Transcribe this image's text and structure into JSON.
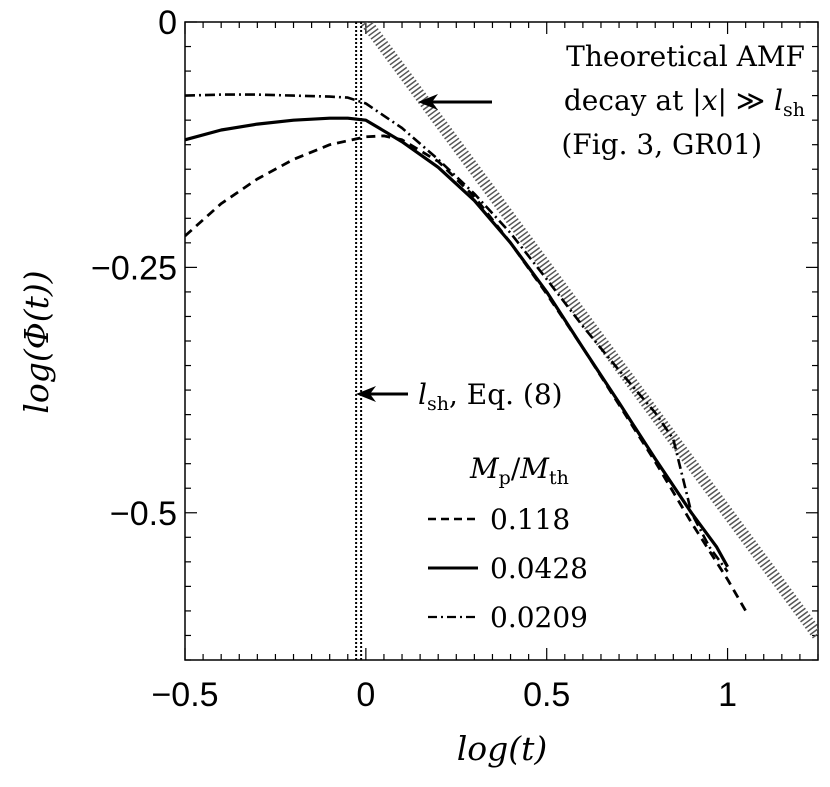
{
  "chart_data": {
    "type": "line",
    "xlabel": "log(t)",
    "ylabel": "log(Φ(t))",
    "xlim": [
      -0.5,
      1.25
    ],
    "ylim": [
      -0.65,
      0
    ],
    "x_ticks": [
      -0.5,
      0,
      0.5,
      1
    ],
    "x_tick_labels": [
      "−0.5",
      "0",
      "0.5",
      "1"
    ],
    "y_ticks": [
      0,
      -0.25,
      -0.5
    ],
    "y_tick_labels": [
      "0",
      "−0.25",
      "−0.5"
    ],
    "legend": {
      "title": "M_p/M_th",
      "title_main": "M",
      "title_sub1": "p",
      "title_slash": "/",
      "title_sub2": "th",
      "placement": "lower-center",
      "entries": [
        "0.118",
        "0.0428",
        "0.0209"
      ]
    },
    "series": [
      {
        "name": "0.118",
        "style": "dashed",
        "x": [
          -0.5,
          -0.4,
          -0.3,
          -0.2,
          -0.1,
          0.0,
          0.05,
          0.1,
          0.2,
          0.3,
          0.4,
          0.5,
          0.6,
          0.7,
          0.8,
          0.9,
          1.0,
          1.05
        ],
        "y": [
          -0.218,
          -0.185,
          -0.16,
          -0.14,
          -0.125,
          -0.117,
          -0.116,
          -0.12,
          -0.142,
          -0.178,
          -0.225,
          -0.277,
          -0.332,
          -0.39,
          -0.448,
          -0.51,
          -0.568,
          -0.6
        ]
      },
      {
        "name": "0.0428",
        "style": "solid",
        "x": [
          -0.5,
          -0.4,
          -0.3,
          -0.2,
          -0.1,
          -0.05,
          0.0,
          0.1,
          0.2,
          0.3,
          0.4,
          0.5,
          0.6,
          0.7,
          0.8,
          0.9,
          0.97,
          1.0
        ],
        "y": [
          -0.12,
          -0.11,
          -0.104,
          -0.1,
          -0.098,
          -0.098,
          -0.1,
          -0.122,
          -0.148,
          -0.182,
          -0.225,
          -0.275,
          -0.332,
          -0.388,
          -0.445,
          -0.5,
          -0.535,
          -0.555
        ]
      },
      {
        "name": "0.0209",
        "style": "dashdot",
        "x": [
          -0.5,
          -0.4,
          -0.3,
          -0.2,
          -0.1,
          -0.05,
          0.0,
          0.1,
          0.2,
          0.3,
          0.4,
          0.5,
          0.6,
          0.7,
          0.8,
          0.85,
          0.9,
          0.95,
          1.0
        ],
        "y": [
          -0.075,
          -0.074,
          -0.074,
          -0.075,
          -0.076,
          -0.077,
          -0.083,
          -0.108,
          -0.14,
          -0.175,
          -0.215,
          -0.262,
          -0.31,
          -0.355,
          -0.398,
          -0.425,
          -0.5,
          -0.535,
          -0.56
        ]
      }
    ],
    "reference_lines": [
      {
        "name": "theoretical-amf-decay",
        "style": "hatched",
        "x": [
          0.0,
          1.25
        ],
        "y": [
          0.0,
          -0.625
        ]
      },
      {
        "name": "l-sh-vertical",
        "style": "dotted",
        "x_value": -0.02
      }
    ],
    "annotations": {
      "amf_line1": "Theoretical AMF",
      "amf_line2_prefix": "decay at |",
      "amf_line2_var": "x",
      "amf_line2_mid": "| ≫ ",
      "amf_line2_l": "l",
      "amf_line2_sub": "sh",
      "amf_line3": "(Fig. 3, GR01)",
      "lsh_l": "l",
      "lsh_sub": "sh",
      "lsh_rest": ", Eq. (8)"
    }
  }
}
